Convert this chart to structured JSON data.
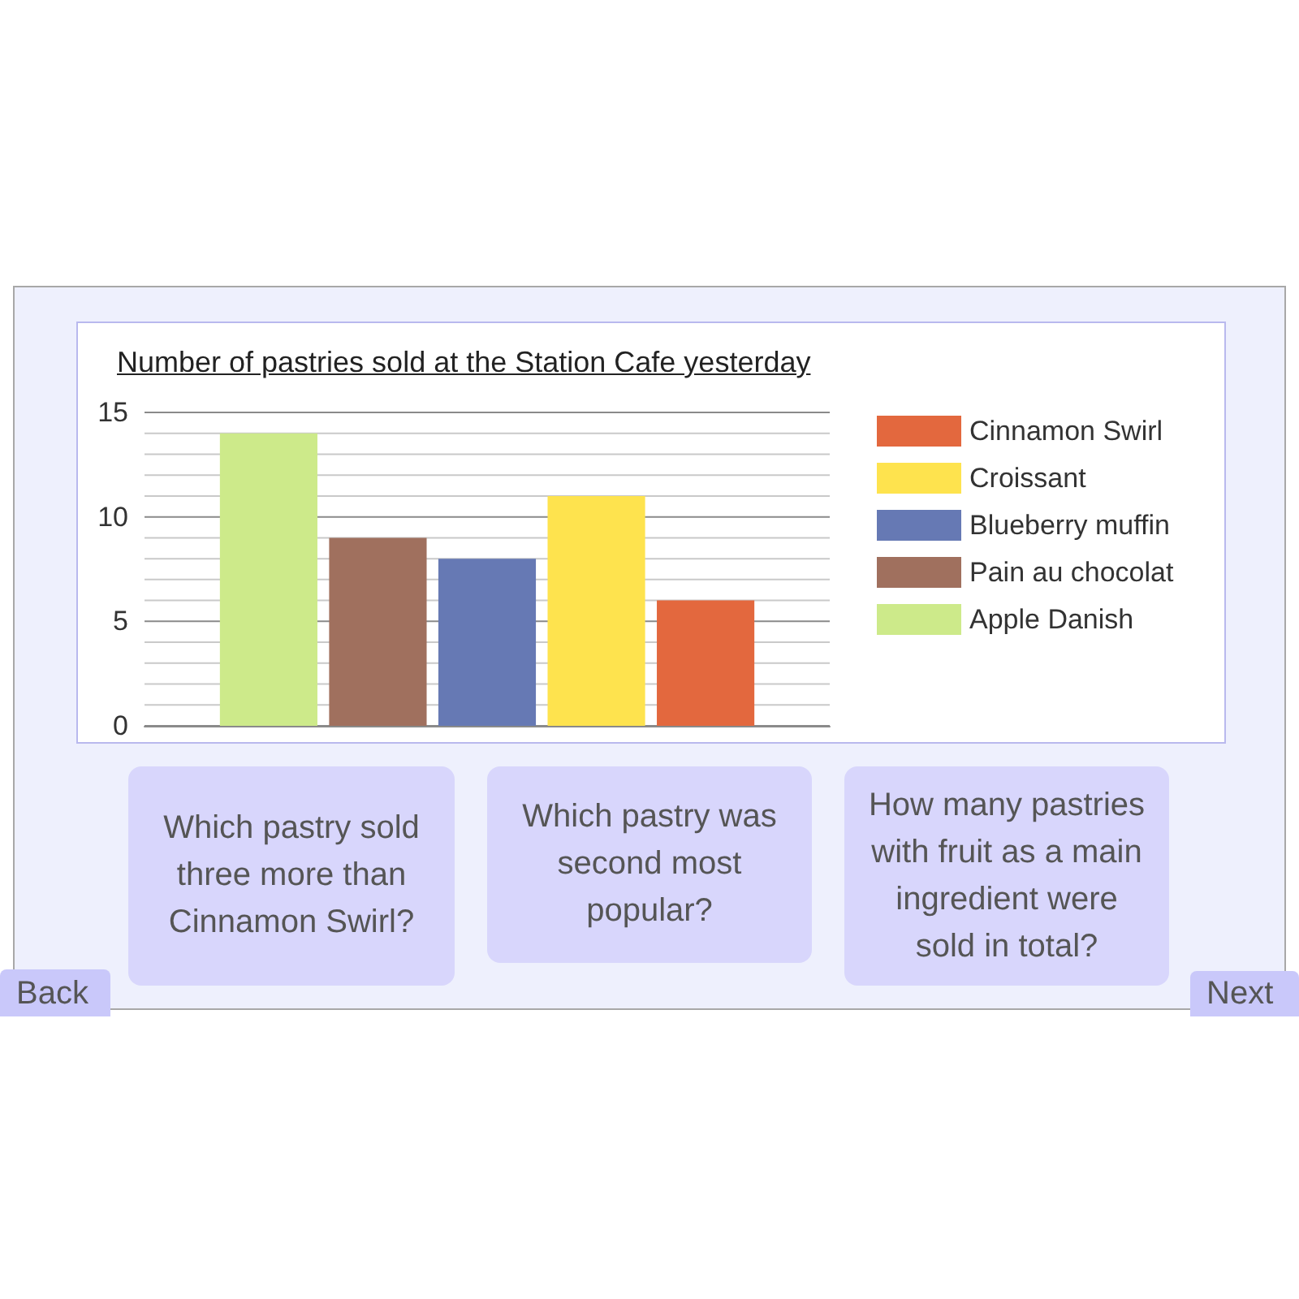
{
  "chart_data": {
    "type": "bar",
    "title": "Number of pastries sold at the Station Cafe yesterday",
    "categories": [
      null
    ],
    "series": [
      {
        "name": "Apple Danish",
        "color": "#cdea8a",
        "values": [
          14
        ]
      },
      {
        "name": "Pain au chocolat",
        "color": "#a0705e",
        "values": [
          9
        ]
      },
      {
        "name": "Blueberry muffin",
        "color": "#6679b4",
        "values": [
          8
        ]
      },
      {
        "name": "Croissant",
        "color": "#fee34e",
        "values": [
          11
        ]
      },
      {
        "name": "Cinnamon Swirl",
        "color": "#e3683e",
        "values": [
          6
        ]
      }
    ],
    "ylim": [
      0,
      15
    ],
    "yticks": [
      0,
      {
        "value": 1,
        "label": null
      },
      {
        "value": 2,
        "label": null
      },
      {
        "value": 3,
        "label": null
      },
      {
        "value": 4,
        "label": null
      },
      5,
      {
        "value": 6,
        "label": null
      },
      {
        "value": 7,
        "label": null
      },
      {
        "value": 8,
        "label": null
      },
      {
        "value": 9,
        "label": null
      },
      10,
      {
        "value": 11,
        "label": null
      },
      {
        "value": 12,
        "label": null
      },
      {
        "value": 13,
        "label": null
      },
      {
        "value": 14,
        "label": null
      },
      15
    ],
    "grid": "y",
    "legend": "right",
    "tick_labels": "y",
    "annotations": [
      "Which pastry sold three more than Cinnamon Swirl?",
      "Which pastry was second most popular?",
      "How many pastries with fruit as a main ingredient were sold in total?",
      "Back",
      "Next"
    ]
  }
}
